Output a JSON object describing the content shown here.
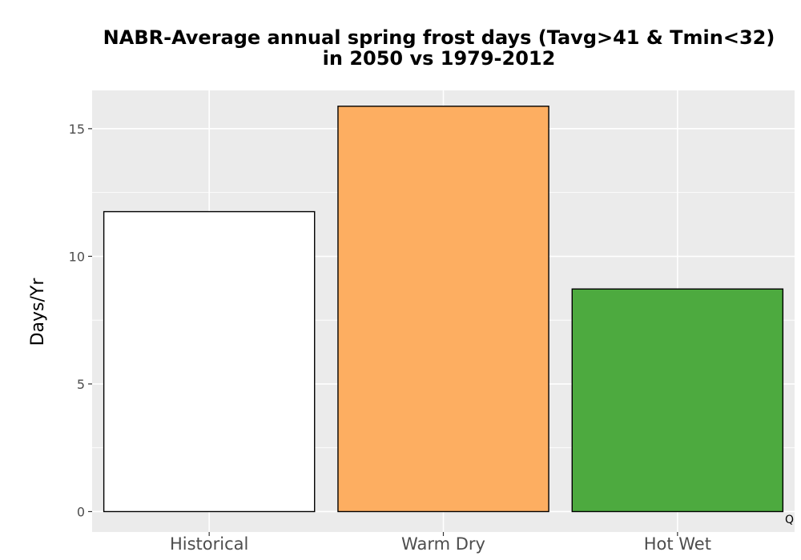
{
  "chart_data": {
    "type": "bar",
    "title_line1": "NABR-Average annual spring frost days (Tavg>41 & Tmin<32)",
    "title_line2": "in 2050 vs 1979-2012",
    "xlabel": "",
    "ylabel": "Days/Yr",
    "categories": [
      "Historical",
      "Warm Dry",
      "Hot Wet"
    ],
    "values": [
      11.75,
      15.88,
      8.72
    ],
    "bar_colors": [
      "#ffffff",
      "#fdae61",
      "#4daa3f"
    ],
    "bar_outline": "#000000",
    "ylim": [
      -0.8,
      16.5
    ],
    "yticks": [
      0,
      5,
      10,
      15
    ],
    "ytick_labels": [
      "0",
      "5",
      "10",
      "15"
    ],
    "grid": true,
    "panel_background": "#ebebeb",
    "grid_color": "#ffffff",
    "caption": "Q"
  }
}
